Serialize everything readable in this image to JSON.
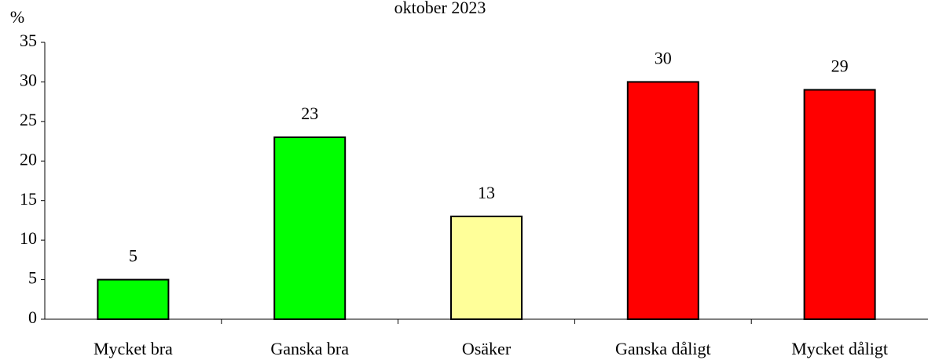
{
  "chart_data": {
    "type": "bar",
    "title": "oktober 2023",
    "y_label": "%",
    "categories": [
      "Mycket bra",
      "Ganska bra",
      "Osäker",
      "Ganska dåligt",
      "Mycket dåligt"
    ],
    "values": [
      5,
      23,
      13,
      30,
      29
    ],
    "colors": [
      "#00ff00",
      "#00ff00",
      "#ffff99",
      "#ff0000",
      "#ff0000"
    ],
    "ylim": [
      0,
      35
    ],
    "yticks": [
      0,
      5,
      10,
      15,
      20,
      25,
      30,
      35
    ],
    "grid": false
  }
}
